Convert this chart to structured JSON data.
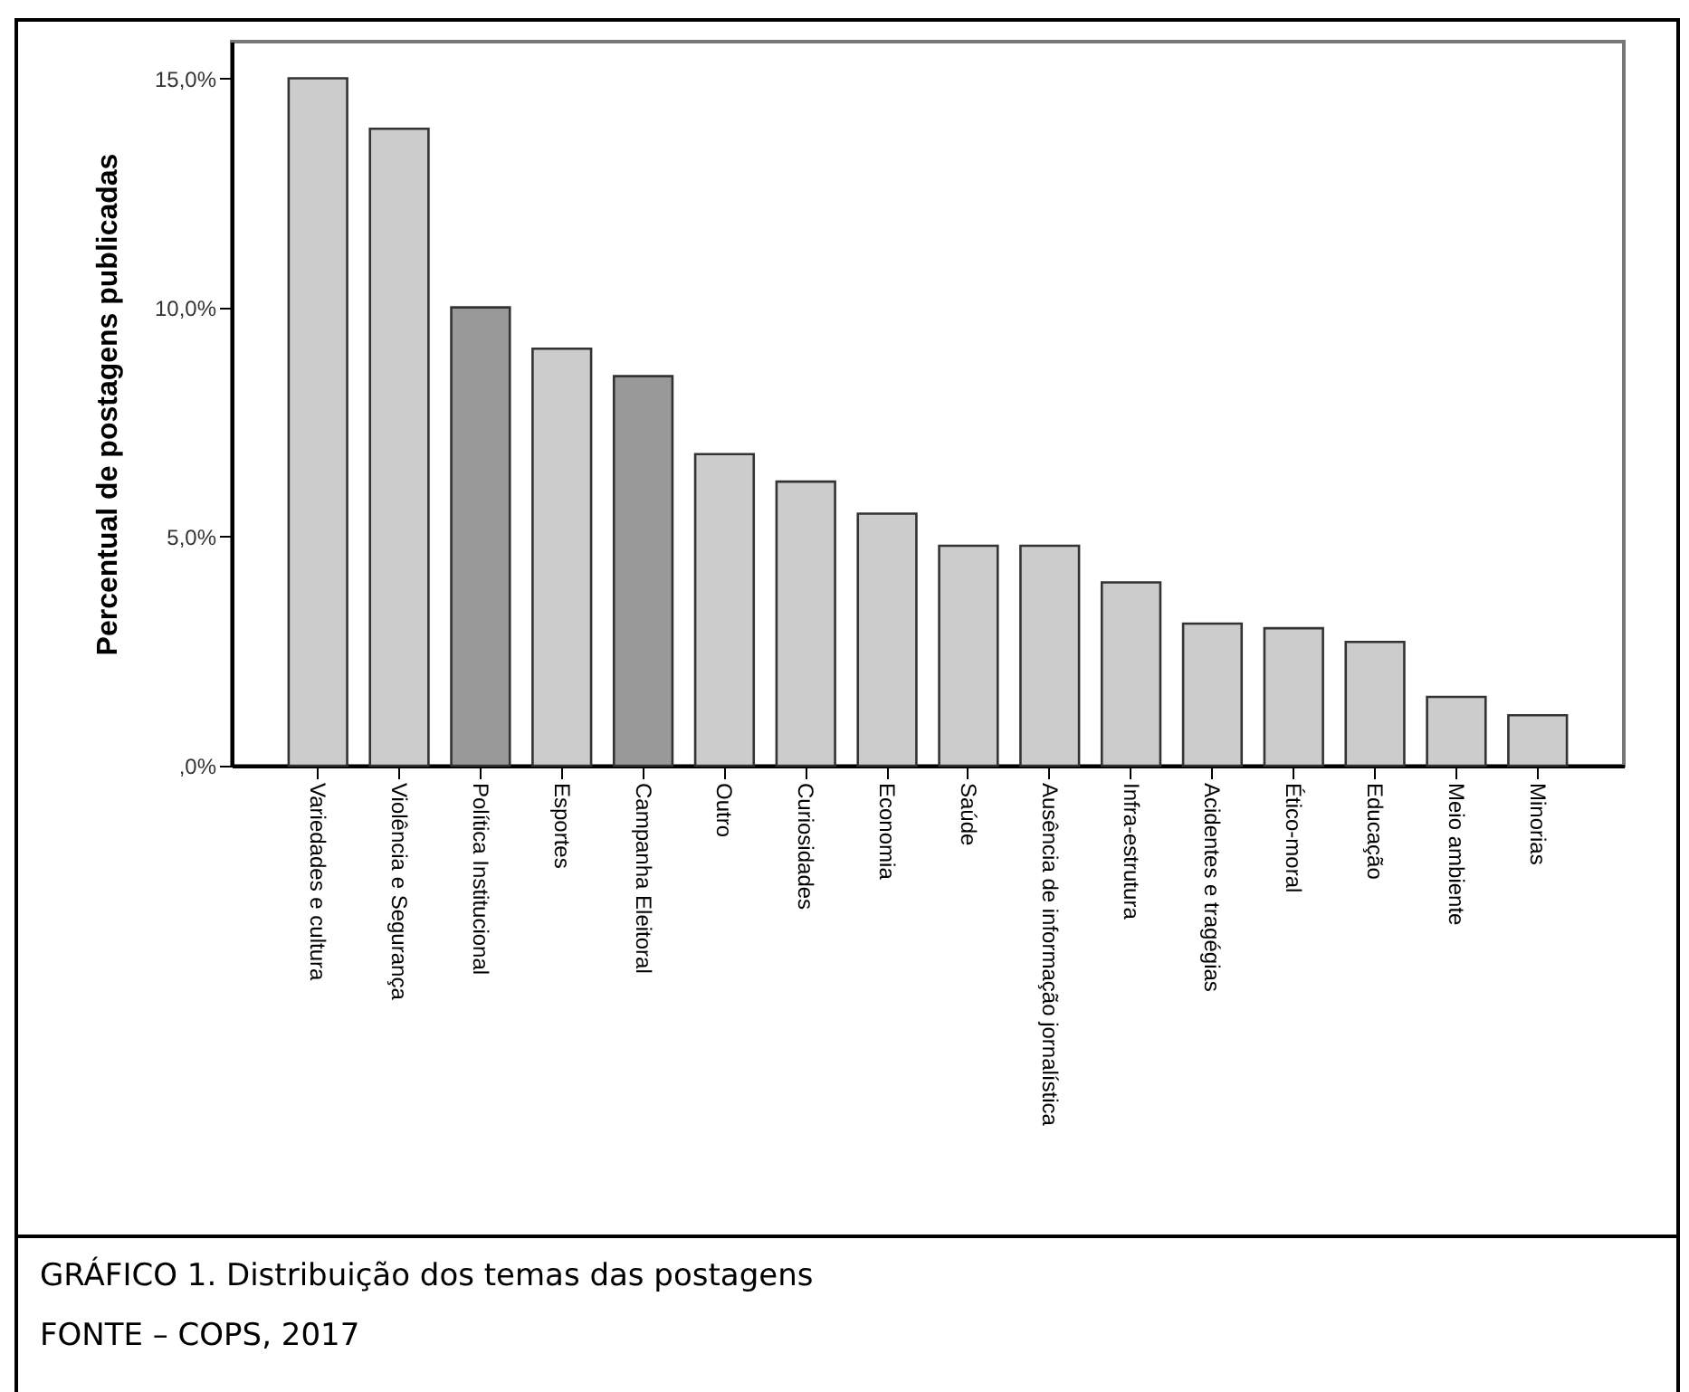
{
  "chart_data": {
    "type": "bar",
    "ylabel": "Percentual de postagens publicadas",
    "categories": [
      "Variedades e cultura",
      "Violência e Segurança",
      "Política Institucional",
      "Esportes",
      "Campanha Eleitoral",
      "Outro",
      "Curiosidades",
      "Economia",
      "Saúde",
      "Ausência de informação jornalística",
      "Infra-estrutura",
      "Acidentes e tragégias",
      "Ético-moral",
      "Educação",
      "Meio ambiente",
      "Minorias"
    ],
    "values": [
      15.0,
      13.9,
      10.0,
      9.1,
      8.5,
      6.8,
      6.2,
      5.5,
      4.8,
      4.8,
      4.0,
      3.1,
      3.0,
      2.7,
      1.5,
      1.1
    ],
    "colors": [
      "#cccccc",
      "#cccccc",
      "#999999",
      "#cccccc",
      "#999999",
      "#cccccc",
      "#cccccc",
      "#cccccc",
      "#cccccc",
      "#cccccc",
      "#cccccc",
      "#cccccc",
      "#cccccc",
      "#cccccc",
      "#cccccc",
      "#cccccc"
    ],
    "ylim": [
      0,
      15.8
    ],
    "yticks": [
      {
        "value": 0,
        "label": ",0%"
      },
      {
        "value": 5,
        "label": "5,0%"
      },
      {
        "value": 10,
        "label": "10,0%"
      },
      {
        "value": 15,
        "label": "15,0%"
      }
    ],
    "grid": false,
    "annotations": [
      "GRÁFICO 1. Distribuição dos temas das postagens",
      "FONTE – COPS, 2017"
    ]
  }
}
